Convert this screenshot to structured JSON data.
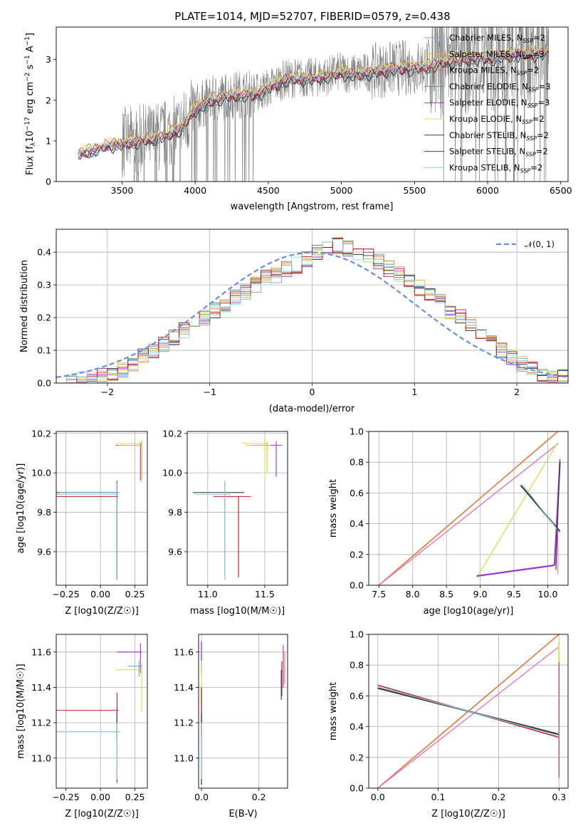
{
  "figure": {
    "title": "PLATE=1014, MJD=52707, FIBERID=0579, z=0.438"
  },
  "colors": {
    "Chabrier MILES": "#6fa8dc",
    "Salpeter MILES": "#e6c229",
    "Kroupa MILES": "#e8743b",
    "Chabrier ELODIE": "#5e8f7d",
    "Salpeter ELODIE": "#9b30d9",
    "Kroupa ELODIE": "#d4e157",
    "Chabrier STELIB": "#3a3a3a",
    "Salpeter STELIB": "#c1121f",
    "Kroupa STELIB": "#8fd3e8",
    "grid": "#b0b0b0",
    "data": "#808080",
    "normal": "#6a8fd8",
    "pink": "#e377c2"
  },
  "chart_data": [
    {
      "id": "spectrum",
      "type": "line",
      "xlabel": "wavelength [Angstrom, rest frame]",
      "ylabel": "Flux [f_λ 10^-17 erg cm^-2 s^-1 A^-1]",
      "xlim": [
        3050,
        6550
      ],
      "ylim": [
        0,
        3.8
      ],
      "xticks": [
        3500,
        4000,
        4500,
        5000,
        5500,
        6000,
        6500
      ],
      "yticks": [
        0,
        1,
        2,
        3
      ],
      "grid": false,
      "legend": "top-right",
      "data_series": {
        "name": "",
        "color": "#808080",
        "x_range": [
          3200,
          6420
        ]
      },
      "model_continuum": {
        "x": [
          3200,
          3300,
          3400,
          3500,
          3600,
          3700,
          3800,
          3900,
          4000,
          4100,
          4200,
          4300,
          4400,
          4500,
          4600,
          4700,
          4800,
          4900,
          5000,
          5100,
          5200,
          5300,
          5400,
          5500,
          5600,
          5700,
          5800,
          5900,
          6000,
          6100,
          6200,
          6300,
          6420
        ],
        "y": [
          0.7,
          0.78,
          0.9,
          0.95,
          1.0,
          1.05,
          1.15,
          1.3,
          1.8,
          2.0,
          2.1,
          2.15,
          2.15,
          2.3,
          2.5,
          2.55,
          2.55,
          2.6,
          2.7,
          2.65,
          2.7,
          2.75,
          2.8,
          2.8,
          2.85,
          2.95,
          3.0,
          3.05,
          3.05,
          3.1,
          3.15,
          3.15,
          3.2
        ]
      },
      "series": [
        {
          "label": "Chabrier MILES, N_SSP=2",
          "base": "Chabrier MILES",
          "nssp": "2"
        },
        {
          "label": "Salpeter MILES, N_SSP=3",
          "base": "Salpeter MILES",
          "nssp": "3"
        },
        {
          "label": "Kroupa MILES, N_SSP=2",
          "base": "Kroupa MILES",
          "nssp": "2"
        },
        {
          "label": "Chabrier ELODIE, N_SSP=3",
          "base": "Chabrier ELODIE",
          "nssp": "3"
        },
        {
          "label": "Salpeter ELODIE, N_SSP=3",
          "base": "Salpeter ELODIE",
          "nssp": "3"
        },
        {
          "label": "Kroupa ELODIE, N_SSP=2",
          "base": "Kroupa ELODIE",
          "nssp": "2"
        },
        {
          "label": "Chabrier STELIB, N_SSP=2",
          "base": "Chabrier STELIB",
          "nssp": "2"
        },
        {
          "label": "Salpeter STELIB, N_SSP=2",
          "base": "Salpeter STELIB",
          "nssp": "2"
        },
        {
          "label": "Kroupa STELIB, N_SSP=2",
          "base": "Kroupa STELIB",
          "nssp": "2"
        }
      ]
    },
    {
      "id": "residuals",
      "type": "line",
      "xlabel": "(data-model)/error",
      "ylabel": "Normed distribution",
      "xlim": [
        -2.5,
        2.5
      ],
      "ylim": [
        0,
        0.47
      ],
      "xticks": [
        -2,
        -1,
        0,
        1,
        2
      ],
      "yticks": [
        0.0,
        0.1,
        0.2,
        0.3,
        0.4
      ],
      "grid": true,
      "legend": "top-right",
      "normal_label": "𝒩(0, 1)",
      "hist_bin_width": 0.1,
      "hist_centers": [
        -2.45,
        -2.35,
        -2.25,
        -2.15,
        -2.05,
        -1.95,
        -1.85,
        -1.75,
        -1.65,
        -1.55,
        -1.45,
        -1.35,
        -1.25,
        -1.15,
        -1.05,
        -0.95,
        -0.85,
        -0.75,
        -0.65,
        -0.55,
        -0.45,
        -0.35,
        -0.25,
        -0.15,
        -0.05,
        0.05,
        0.15,
        0.25,
        0.35,
        0.45,
        0.55,
        0.65,
        0.75,
        0.85,
        0.95,
        1.05,
        1.15,
        1.25,
        1.35,
        1.45,
        1.55,
        1.65,
        1.75,
        1.85,
        1.95,
        2.05,
        2.15,
        2.25,
        2.35,
        2.45
      ],
      "hist_values": [
        0.01,
        0.01,
        0.02,
        0.02,
        0.03,
        0.04,
        0.05,
        0.06,
        0.08,
        0.1,
        0.12,
        0.14,
        0.16,
        0.18,
        0.2,
        0.22,
        0.24,
        0.26,
        0.28,
        0.3,
        0.32,
        0.33,
        0.35,
        0.36,
        0.38,
        0.4,
        0.41,
        0.42,
        0.41,
        0.4,
        0.39,
        0.37,
        0.35,
        0.33,
        0.31,
        0.29,
        0.27,
        0.25,
        0.22,
        0.2,
        0.18,
        0.15,
        0.13,
        0.11,
        0.09,
        0.07,
        0.06,
        0.04,
        0.03,
        0.03
      ]
    },
    {
      "id": "age-vs-Z",
      "type": "scatter",
      "xlabel": "Z [log10(Z/Z☉)]",
      "ylabel": "age [log10(age/yr)]",
      "xlim": [
        -0.32,
        0.34
      ],
      "ylim": [
        9.43,
        10.21
      ],
      "xticks": [
        -0.25,
        0.0,
        0.25
      ],
      "xticklabels": [
        "−0.25",
        "0.00",
        "0.25"
      ],
      "yticks": [
        9.6,
        9.8,
        10.0,
        10.2
      ],
      "grid": true
    },
    {
      "id": "age-vs-mass",
      "type": "scatter",
      "xlabel": "mass [log10(M/M☉)]",
      "ylabel": "",
      "xlim": [
        10.82,
        11.7
      ],
      "ylim": [
        9.43,
        10.21
      ],
      "xticks": [
        11.0,
        11.5
      ],
      "yticks": [
        9.6,
        9.8,
        10.0,
        10.2
      ],
      "grid": true
    },
    {
      "id": "weight-vs-age",
      "type": "line",
      "xlabel": "age [log10(age/yr)]",
      "ylabel": "mass weight",
      "xlim": [
        7.35,
        10.3
      ],
      "ylim": [
        0,
        1.0
      ],
      "xticks": [
        7.5,
        8.0,
        8.5,
        9.0,
        9.5,
        10.0
      ],
      "yticks": [
        0.0,
        0.2,
        0.4,
        0.6,
        0.8,
        1.0
      ],
      "grid": true
    },
    {
      "id": "mass-vs-Z",
      "type": "scatter",
      "xlabel": "Z [log10(Z/Z☉)]",
      "ylabel": "mass [log10(M/M☉)]",
      "xlim": [
        -0.32,
        0.34
      ],
      "ylim": [
        10.83,
        11.7
      ],
      "xticks": [
        -0.25,
        0.0,
        0.25
      ],
      "xticklabels": [
        "−0.25",
        "0.00",
        "0.25"
      ],
      "yticks": [
        11.0,
        11.2,
        11.4,
        11.6
      ],
      "grid": true
    },
    {
      "id": "mass-vs-EBV",
      "type": "scatter",
      "xlabel": "E(B-V)",
      "ylabel": "",
      "xlim": [
        -0.01,
        0.3
      ],
      "ylim": [
        10.83,
        11.7
      ],
      "xticks": [
        0.0,
        0.2
      ],
      "yticks": [
        11.0,
        11.2,
        11.4,
        11.6
      ],
      "grid": true
    },
    {
      "id": "weight-vs-Z",
      "type": "line",
      "xlabel": "Z [log10(Z/Z☉)]",
      "ylabel": "mass weight",
      "xlim": [
        -0.015,
        0.315
      ],
      "ylim": [
        0,
        1.0
      ],
      "xticks": [
        0.0,
        0.1,
        0.2,
        0.3
      ],
      "yticks": [
        0.0,
        0.2,
        0.4,
        0.6,
        0.8,
        1.0
      ],
      "grid": true
    }
  ]
}
